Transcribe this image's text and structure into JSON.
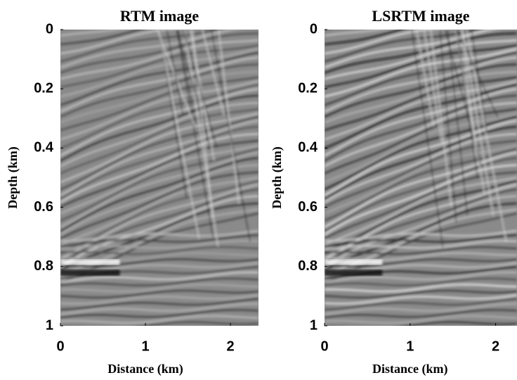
{
  "chart_data": [
    {
      "type": "image",
      "title": "RTM image",
      "xlabel": "Distance (km)",
      "ylabel": "Depth (km)",
      "xlim": [
        0,
        2.33
      ],
      "xticks": [
        0,
        1,
        2
      ],
      "ylim": [
        1,
        0
      ],
      "yticks": [
        0,
        0.2,
        0.4,
        0.6,
        0.8,
        1
      ]
    },
    {
      "type": "image",
      "title": "LSRTM image",
      "xlabel": "Distance (km)",
      "ylabel": "Depth (km)",
      "xlim": [
        0,
        2.25
      ],
      "xticks": [
        0,
        1,
        2
      ],
      "ylim": [
        1,
        0
      ],
      "yticks": [
        0,
        0.2,
        0.4,
        0.6,
        0.8,
        1
      ]
    }
  ]
}
